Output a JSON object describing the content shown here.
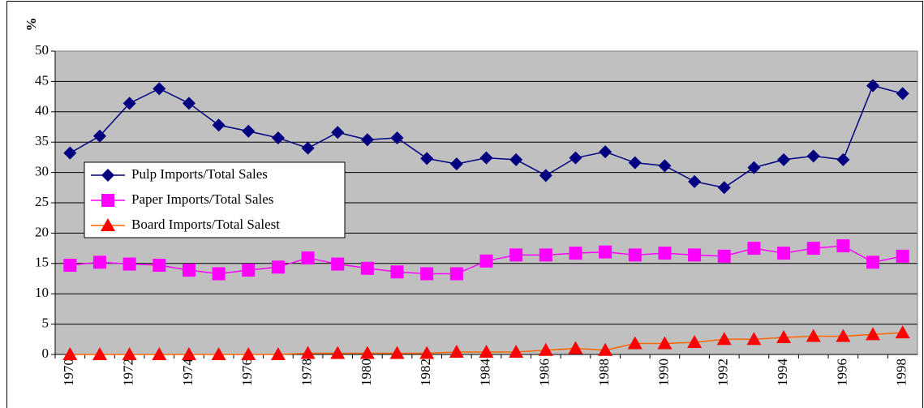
{
  "chart_data": {
    "type": "line",
    "y_label": "%",
    "categories": [
      "1970",
      null,
      "1972",
      null,
      "1974",
      null,
      "1976",
      null,
      "1978",
      null,
      "1980",
      null,
      "1982",
      null,
      "1984",
      null,
      "1986",
      null,
      "1988",
      null,
      "1990",
      null,
      "1992",
      null,
      "1994",
      null,
      "1996",
      null,
      "1998"
    ],
    "series": [
      {
        "name": "Pulp Imports/Total Sales",
        "color": "#000080",
        "marker_color": "#000080",
        "marker": "diamond",
        "values": [
          33.2,
          36,
          41.4,
          43.8,
          41.4,
          37.8,
          36.8,
          35.7,
          34,
          36.6,
          35.4,
          35.7,
          32.3,
          31.4,
          32.4,
          32.1,
          29.5,
          32.4,
          33.4,
          31.6,
          31.1,
          28.5,
          27.5,
          30.8,
          32.1,
          32.7,
          32.1,
          44.3,
          43
        ]
      },
      {
        "name": "Paper Imports/Total Sales",
        "color": "#ff00ff",
        "marker_color": "#ff00ff",
        "marker": "square",
        "values": [
          14.7,
          15.2,
          14.9,
          14.7,
          13.9,
          13.3,
          13.9,
          14.4,
          15.9,
          14.9,
          14.2,
          13.6,
          13.3,
          13.3,
          15.4,
          16.4,
          16.4,
          16.7,
          16.9,
          16.4,
          16.7,
          16.4,
          16.2,
          17.5,
          16.7,
          17.5,
          17.9,
          15.2,
          16.2
        ]
      },
      {
        "name": "Board Imports/Total Salest",
        "color": "#ff6600",
        "marker_color": "#ff0000",
        "marker": "triangle",
        "values": [
          0,
          0,
          0,
          0,
          0,
          0,
          0,
          0,
          0.2,
          0.2,
          0.2,
          0.2,
          0.2,
          0.4,
          0.4,
          0.4,
          0.7,
          1,
          0.7,
          1.8,
          1.8,
          2,
          2.5,
          2.5,
          2.8,
          3,
          3,
          3.3,
          3.6
        ]
      }
    ],
    "ylim": [
      0,
      50
    ],
    "yticks": [
      0,
      5,
      10,
      15,
      20,
      25,
      30,
      35,
      40,
      45,
      50
    ],
    "grid": true,
    "plot_background": "#c0c0c0"
  }
}
